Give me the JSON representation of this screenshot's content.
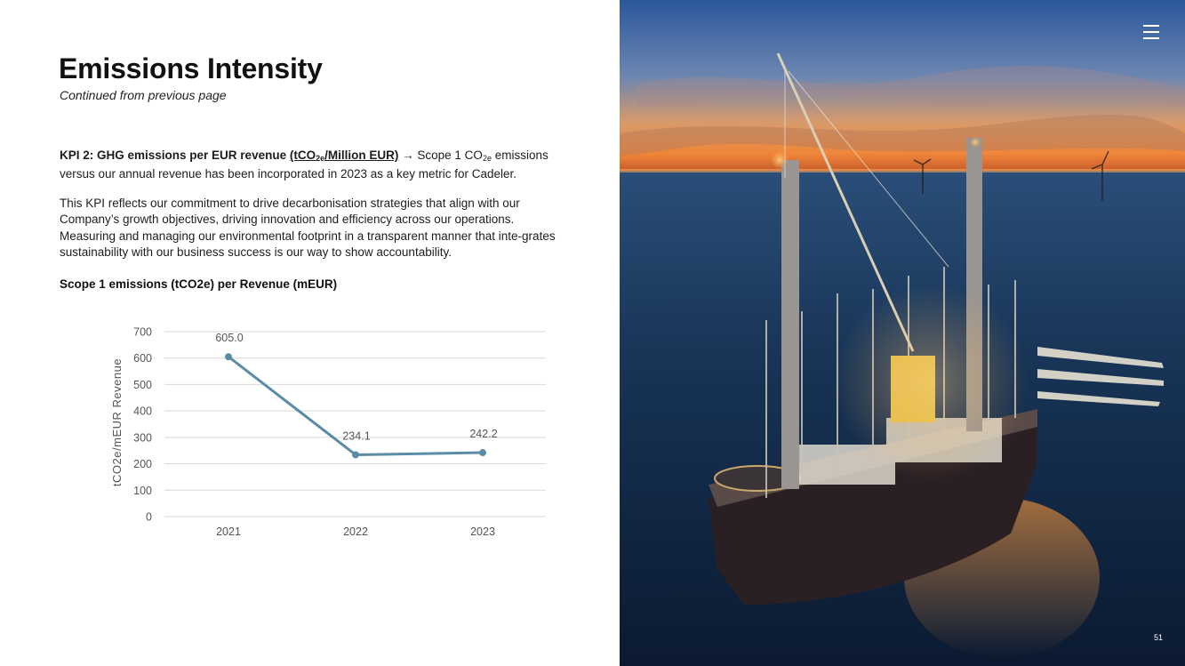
{
  "page": {
    "title": "Emissions Intensity",
    "subtitle": "Continued from previous page",
    "page_number": "51"
  },
  "kpi": {
    "label": "KPI 2: GHG emissions per EUR revenue",
    "unit_open": "(tCO",
    "unit_sub": "2e",
    "unit_close": "/Million EUR)",
    "arrow": "→",
    "desc_pre": " Scope 1 CO",
    "desc_sub": "2e",
    "desc_post": " emissions versus our annual revenue has been incorporated in 2023 as a key metric for Cadeler."
  },
  "paragraph": "This KPI reflects our commitment to drive decarbonisation strategies that align with our Company’s growth objectives, driving innovation and efficiency across our operations. Measuring and managing our environmental footprint in a transparent manner that inte-grates sustainability with our business success is our way to show accountability.",
  "chart_data": {
    "type": "line",
    "title": "Scope 1 emissions (tCO2e) per Revenue (mEUR)",
    "xlabel": "",
    "ylabel": "tCO2e/mEUR Revenue",
    "categories": [
      "2021",
      "2022",
      "2023"
    ],
    "values": [
      605.0,
      234.1,
      242.2
    ],
    "data_labels": [
      "605.0",
      "234.1",
      "242.2"
    ],
    "ylim": [
      0,
      700
    ],
    "yticks": [
      "0",
      "100",
      "200",
      "300",
      "400",
      "500",
      "600",
      "700"
    ],
    "grid": true,
    "legend": "none",
    "line_color": "#5a8ca6",
    "grid_color": "#d9d9d9"
  },
  "photo": {
    "alt": "Offshore wind installation vessel at dusk",
    "colors": {
      "sky_top": "#2c5aa0",
      "sky_horizon": "#f08a3c",
      "sea": "#102440"
    }
  },
  "icons": {
    "menu": "hamburger-menu-icon"
  }
}
